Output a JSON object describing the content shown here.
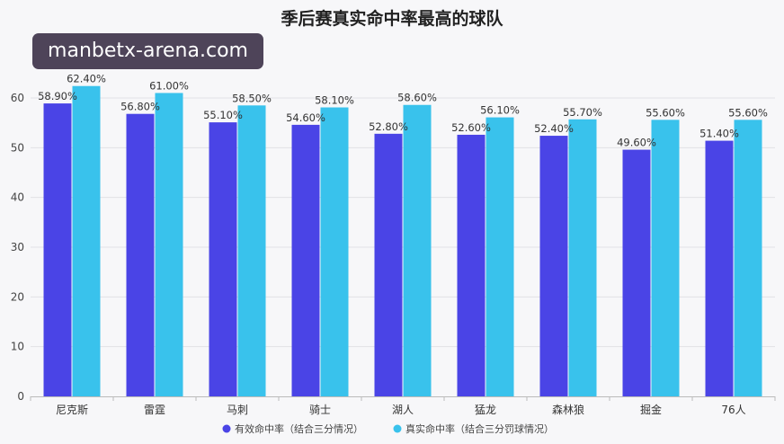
{
  "watermark": "manbetx-arena.com",
  "colors": {
    "series1": "#4a44e6",
    "series2": "#39c2ec",
    "grid": "#e2e2e6",
    "axis": "#bbbbbb"
  },
  "chart_data": {
    "type": "bar",
    "title": "季后赛真实命中率最高的球队",
    "xlabel": "",
    "ylabel": "",
    "ylim": [
      0,
      60
    ],
    "yticks": [
      0,
      10,
      20,
      30,
      40,
      50,
      60
    ],
    "grid": true,
    "legend": "bottom",
    "categories": [
      "尼克斯",
      "雷霆",
      "马刺",
      "骑士",
      "湖人",
      "猛龙",
      "森林狼",
      "掘金",
      "76人"
    ],
    "series": [
      {
        "name": "有效命中率（结合三分情况）",
        "values": [
          58.9,
          56.8,
          55.1,
          54.6,
          52.8,
          52.6,
          52.4,
          49.6,
          51.4
        ],
        "labels": [
          "58.90%",
          "56.80%",
          "55.10%",
          "54.60%",
          "52.80%",
          "52.60%",
          "52.40%",
          "49.60%",
          "51.40%"
        ]
      },
      {
        "name": "真实命中率（结合三分罚球情况）",
        "values": [
          62.4,
          61.0,
          58.5,
          58.1,
          58.6,
          56.1,
          55.7,
          55.6,
          55.6
        ],
        "labels": [
          "62.40%",
          "61.00%",
          "58.50%",
          "58.10%",
          "58.60%",
          "56.10%",
          "55.70%",
          "55.60%",
          "55.60%"
        ]
      }
    ]
  }
}
